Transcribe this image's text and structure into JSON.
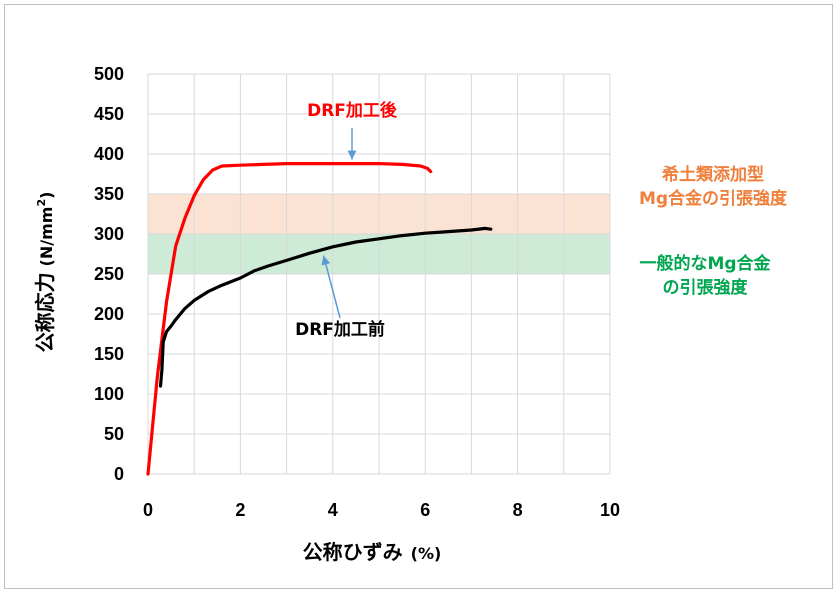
{
  "chart_data": {
    "type": "line",
    "xlabel_main": "公称ひずみ",
    "xlabel_unit": "(%)",
    "ylabel_main": "公称応力",
    "ylabel_unit_pre": "(N/mm",
    "ylabel_unit_sup": "2",
    "ylabel_unit_post": ")",
    "xlim": [
      0,
      10
    ],
    "ylim": [
      0,
      500
    ],
    "xticks": [
      "0",
      "2",
      "4",
      "6",
      "8",
      "10"
    ],
    "yticks": [
      "0",
      "50",
      "100",
      "150",
      "200",
      "250",
      "300",
      "350",
      "400",
      "450",
      "500"
    ],
    "x_minor_step": 1,
    "y_grid_step": 50,
    "grid": true,
    "bands": [
      {
        "from": 300,
        "to": 350,
        "color": "#fbe3d4",
        "label_lines": [
          "希土類添加型",
          "Mg合金の引張強度"
        ],
        "label_color": "#f07f3c"
      },
      {
        "from": 250,
        "to": 300,
        "color": "#cdebd6",
        "label_lines": [
          "一般的なMg合金",
          "の引張強度"
        ],
        "label_color": "#00a650"
      }
    ],
    "series": [
      {
        "name": "DRF加工後",
        "color": "#ff0000",
        "x": [
          0,
          0.2,
          0.4,
          0.6,
          0.8,
          1.0,
          1.2,
          1.4,
          1.6,
          2.0,
          2.5,
          3.0,
          3.5,
          4.0,
          4.5,
          5.0,
          5.5,
          5.9,
          6.05,
          6.12
        ],
        "y": [
          0,
          120,
          215,
          285,
          320,
          348,
          368,
          380,
          385,
          386,
          387,
          388,
          388,
          388,
          388,
          388,
          387,
          385,
          382,
          378
        ]
      },
      {
        "name": "DRF加工前",
        "color": "#000000",
        "x": [
          0.27,
          0.3,
          0.33,
          0.4,
          0.5,
          0.6,
          0.8,
          1.0,
          1.3,
          1.6,
          2.0,
          2.3,
          2.6,
          3.0,
          3.5,
          4.0,
          4.5,
          5.0,
          5.5,
          6.0,
          6.5,
          7.0,
          7.3,
          7.42
        ],
        "y": [
          110,
          130,
          165,
          178,
          185,
          193,
          207,
          217,
          228,
          236,
          245,
          254,
          260,
          267,
          276,
          284,
          290,
          294,
          298,
          301,
          303,
          305,
          307,
          306
        ]
      }
    ],
    "annotations": [
      {
        "text": "DRF加工後",
        "color": "#ff0000",
        "arrow_color": "#5b9bd5",
        "points_to": [
          4.5,
          388
        ]
      },
      {
        "text": "DRF加工前",
        "color": "#000000",
        "arrow_color": "#5b9bd5",
        "points_to": [
          3.8,
          278
        ]
      }
    ]
  }
}
